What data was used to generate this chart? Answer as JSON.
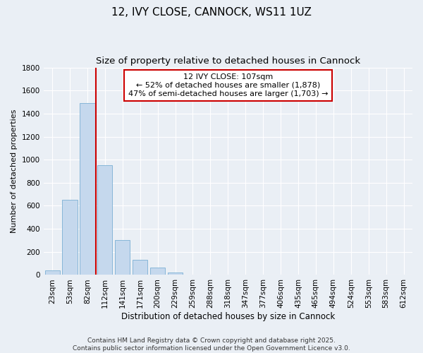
{
  "title": "12, IVY CLOSE, CANNOCK, WS11 1UZ",
  "subtitle": "Size of property relative to detached houses in Cannock",
  "xlabel": "Distribution of detached houses by size in Cannock",
  "ylabel": "Number of detached properties",
  "categories": [
    "23sqm",
    "53sqm",
    "82sqm",
    "112sqm",
    "141sqm",
    "171sqm",
    "200sqm",
    "229sqm",
    "259sqm",
    "288sqm",
    "318sqm",
    "347sqm",
    "377sqm",
    "406sqm",
    "435sqm",
    "465sqm",
    "494sqm",
    "524sqm",
    "553sqm",
    "583sqm",
    "612sqm"
  ],
  "values": [
    40,
    650,
    1490,
    950,
    300,
    130,
    65,
    22,
    5,
    2,
    1,
    0,
    0,
    0,
    0,
    0,
    0,
    0,
    0,
    0,
    0
  ],
  "bar_color": "#c5d8ed",
  "bar_edge_color": "#7aafd4",
  "background_color": "#eaeff5",
  "grid_color": "#ffffff",
  "vline_x": 2.5,
  "vline_color": "#cc0000",
  "vline_label": "12 IVY CLOSE: 107sqm",
  "annotation1": "← 52% of detached houses are smaller (1,878)",
  "annotation2": "47% of semi-detached houses are larger (1,703) →",
  "annotation_box_color": "#ffffff",
  "annotation_box_edge_color": "#cc0000",
  "ylim": [
    0,
    1800
  ],
  "yticks": [
    0,
    200,
    400,
    600,
    800,
    1000,
    1200,
    1400,
    1600,
    1800
  ],
  "footer": "Contains HM Land Registry data © Crown copyright and database right 2025.\nContains public sector information licensed under the Open Government Licence v3.0.",
  "title_fontsize": 11,
  "subtitle_fontsize": 9.5,
  "xlabel_fontsize": 8.5,
  "ylabel_fontsize": 8,
  "tick_fontsize": 7.5,
  "annot_fontsize": 8,
  "footer_fontsize": 6.5
}
